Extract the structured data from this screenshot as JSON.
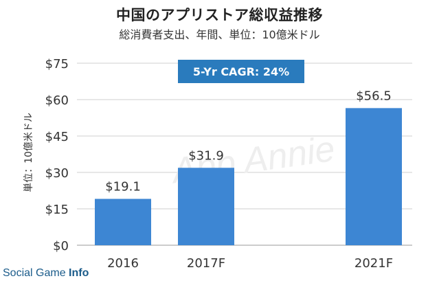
{
  "header": {
    "title": "中国のアプリストア総収益推移",
    "subtitle": "総消費者支出、年間、単位：10億米ドル"
  },
  "annotation": {
    "cagr_label": "5-Yr CAGR: 24%"
  },
  "watermark": {
    "text": "App Annie"
  },
  "footer": {
    "source_regular": "Social Game ",
    "source_bold": "Info"
  },
  "colors": {
    "bar": "#3d86d3",
    "badge": "#2a7bbd",
    "grid": "#cfcfcf",
    "text": "#333333"
  },
  "chart_data": {
    "type": "bar",
    "categories": [
      "2016",
      "2017F",
      "2021F"
    ],
    "values": [
      19.1,
      31.9,
      56.5
    ],
    "value_labels": [
      "$19.1",
      "$31.9",
      "$56.5"
    ],
    "ylabel": "単位：10億米ドル",
    "xlabel": "",
    "ylim": [
      0,
      75
    ],
    "yticks": [
      0,
      15,
      30,
      45,
      60,
      75
    ],
    "ytick_labels": [
      "$0",
      "$15",
      "$30",
      "$45",
      "$60",
      "$75"
    ],
    "grid": true
  }
}
